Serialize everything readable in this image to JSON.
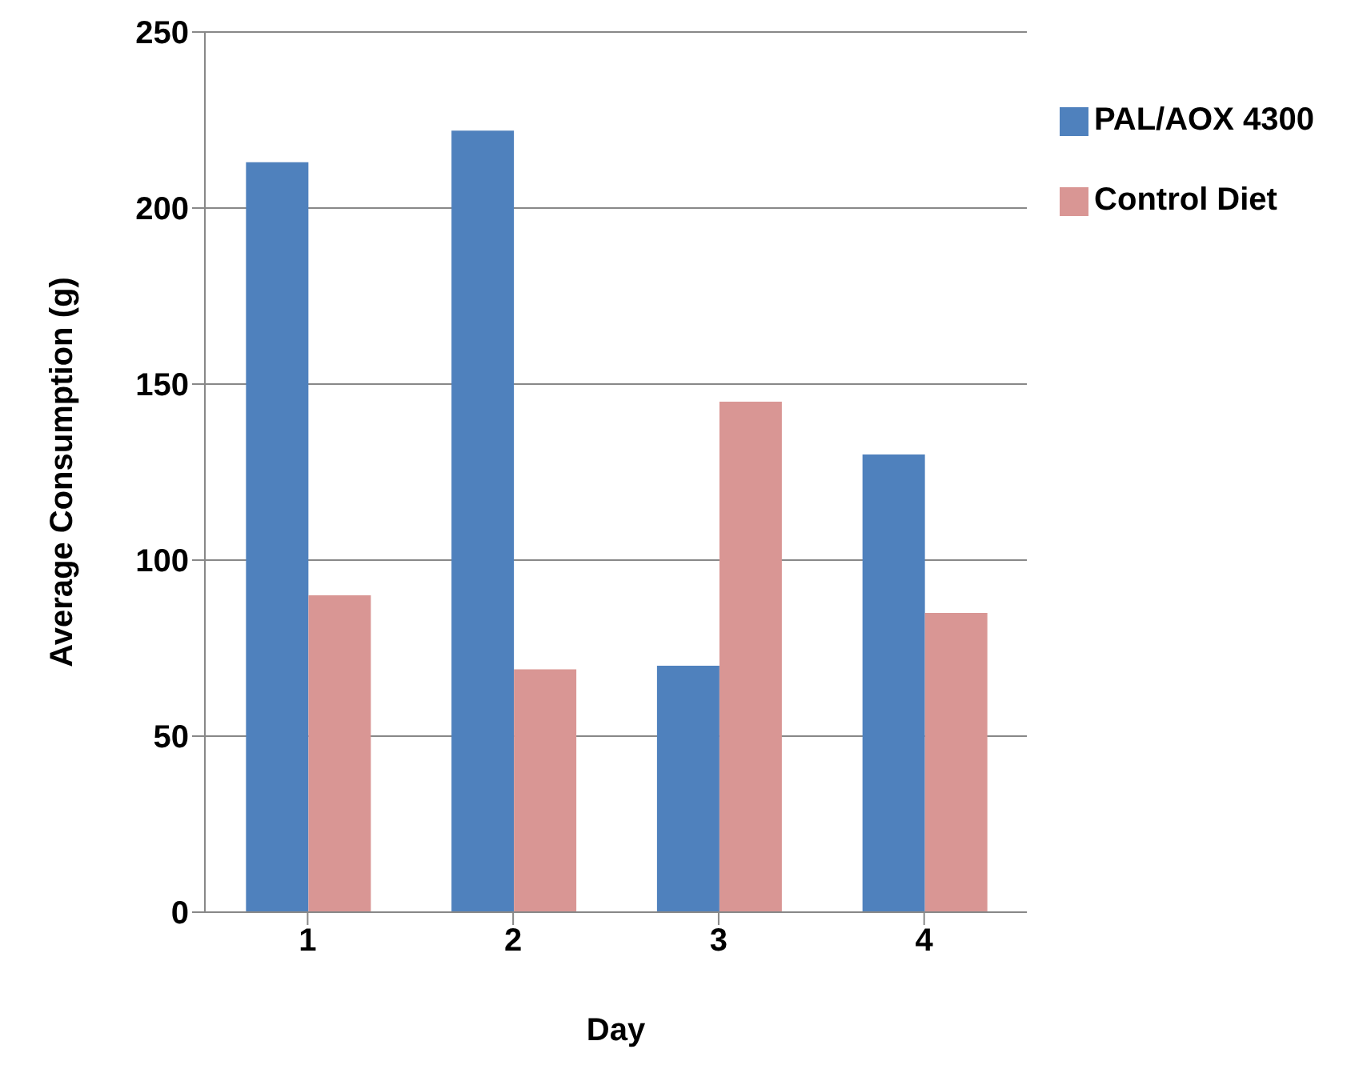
{
  "chart_data": {
    "type": "bar",
    "xlabel": "Day",
    "ylabel": "Average Consumption (g)",
    "categories": [
      "1",
      "2",
      "3",
      "4"
    ],
    "series": [
      {
        "name": "PAL/AOX 4300",
        "color": "#4f81bd",
        "values": [
          213,
          222,
          70,
          130
        ]
      },
      {
        "name": "Control Diet",
        "color": "#d99694",
        "values": [
          90,
          69,
          145,
          85
        ]
      }
    ],
    "ylim": [
      0,
      250
    ],
    "yticks": [
      0,
      50,
      100,
      150,
      200,
      250
    ],
    "grid": "y",
    "legend": "top right"
  }
}
